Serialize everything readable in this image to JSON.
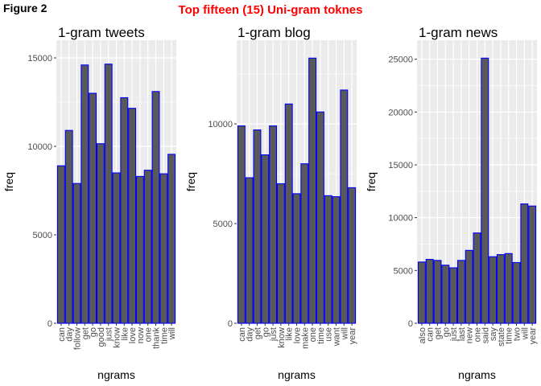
{
  "figure_label": "Figure 2",
  "title": "Top fifteen (15) Uni-gram toknes",
  "colors": {
    "bar_fill": "#595959",
    "bar_stroke": "#0000ff",
    "panel_bg": "#ebebeb",
    "grid": "#ffffff",
    "title": "#ff0000"
  },
  "chart_data": [
    {
      "type": "bar",
      "title": "1-gram tweets",
      "xlabel": "ngrams",
      "ylabel": "freq",
      "ylim": [
        0,
        16000
      ],
      "yticks": [
        0,
        5000,
        10000,
        15000
      ],
      "grid": true,
      "categories": [
        "can",
        "day",
        "follow",
        "get",
        "go",
        "good",
        "just",
        "know",
        "like",
        "love",
        "now",
        "one",
        "thank",
        "time",
        "will"
      ],
      "values": [
        8900,
        10900,
        7900,
        14600,
        13000,
        10150,
        14650,
        8500,
        12750,
        12150,
        8300,
        8650,
        13100,
        8450,
        9550
      ]
    },
    {
      "type": "bar",
      "title": "1-gram blog",
      "xlabel": "ngrams",
      "ylabel": "freq",
      "ylim": [
        0,
        14200
      ],
      "yticks": [
        0,
        5000,
        10000
      ],
      "grid": true,
      "categories": [
        "can",
        "day",
        "get",
        "go",
        "just",
        "know",
        "like",
        "love",
        "make",
        "one",
        "time",
        "use",
        "want",
        "will",
        "year"
      ],
      "values": [
        9900,
        7300,
        9700,
        8450,
        9900,
        7000,
        11000,
        6500,
        8000,
        13300,
        10600,
        6400,
        6350,
        11700,
        6800
      ]
    },
    {
      "type": "bar",
      "title": "1-gram news",
      "xlabel": "ngrams",
      "ylabel": "freq",
      "ylim": [
        0,
        26800
      ],
      "yticks": [
        0,
        5000,
        10000,
        15000,
        20000,
        25000
      ],
      "grid": true,
      "categories": [
        "also",
        "can",
        "get",
        "go",
        "just",
        "last",
        "new",
        "one",
        "said",
        "say",
        "state",
        "time",
        "two",
        "will",
        "year"
      ],
      "values": [
        5800,
        6050,
        5950,
        5500,
        5250,
        5950,
        6900,
        8550,
        25100,
        6300,
        6500,
        6600,
        5750,
        11300,
        11100
      ]
    }
  ]
}
